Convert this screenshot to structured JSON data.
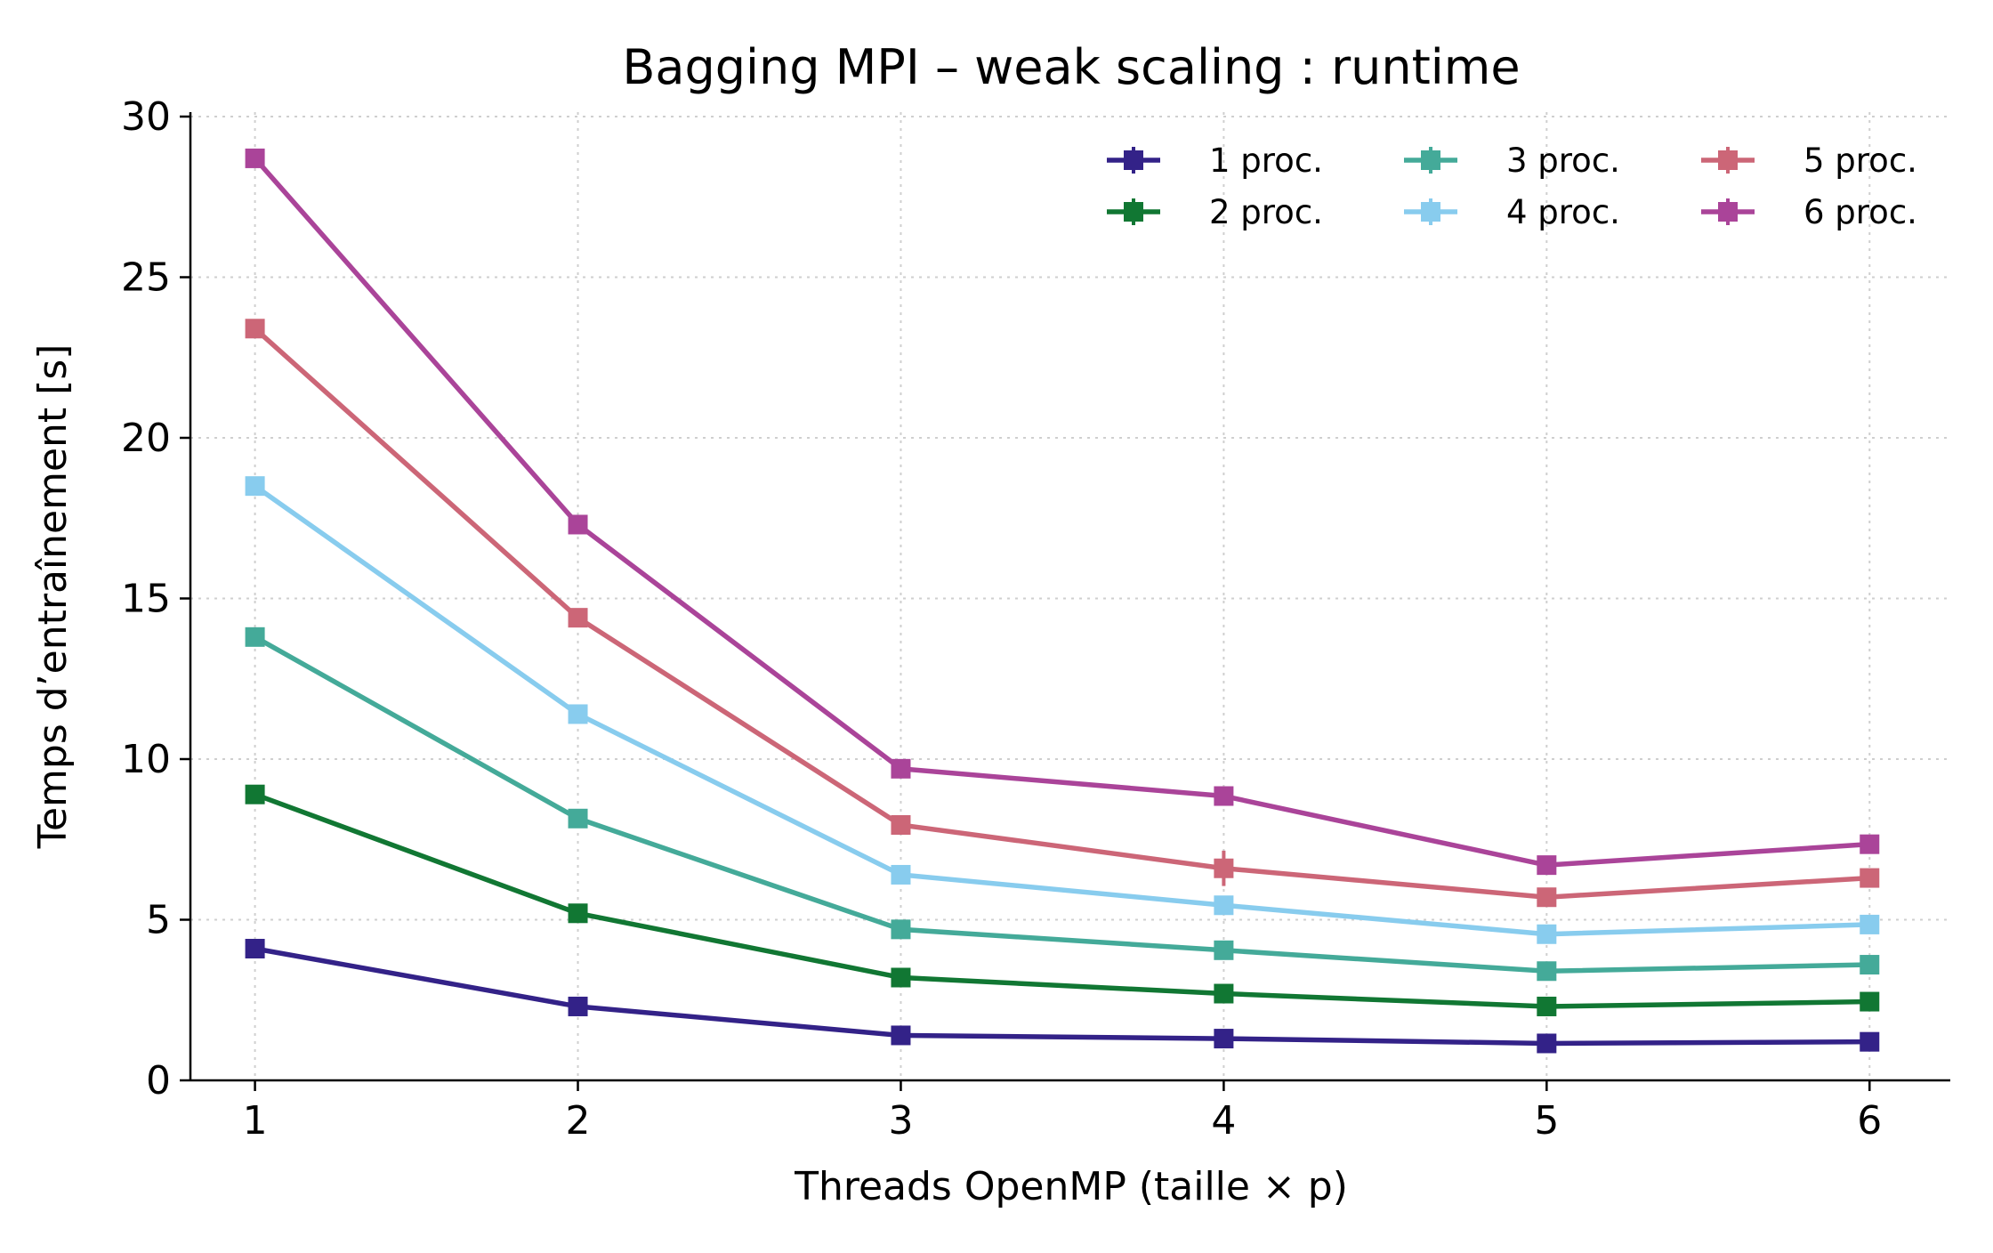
{
  "chart_data": {
    "type": "line",
    "title": "Bagging MPI – weak scaling : runtime",
    "xlabel": "Threads OpenMP  (taille × p)",
    "ylabel": "Temps d’entraînement [s]",
    "x": [
      1,
      2,
      3,
      4,
      5,
      6
    ],
    "x_tick_labels": [
      "1",
      "2",
      "3",
      "4",
      "5",
      "6"
    ],
    "y_ticks": [
      0,
      5,
      10,
      15,
      20,
      25,
      30
    ],
    "y_tick_labels": [
      "0",
      "5",
      "10",
      "15",
      "20",
      "25",
      "30"
    ],
    "xlim": [
      0.8,
      6.25
    ],
    "ylim": [
      0,
      30
    ],
    "grid": true,
    "legend": {
      "placement": "top-right",
      "columns": 3
    },
    "series": [
      {
        "name": "1 proc.",
        "color": "#332288",
        "values": [
          4.1,
          2.3,
          1.4,
          1.3,
          1.15,
          1.2
        ],
        "errors": [
          0.05,
          0.05,
          0.05,
          0.05,
          0.05,
          0.05
        ]
      },
      {
        "name": "2 proc.",
        "color": "#117733",
        "values": [
          8.9,
          5.2,
          3.2,
          2.7,
          2.3,
          2.45
        ],
        "errors": [
          0.1,
          0.1,
          0.1,
          0.1,
          0.1,
          0.1
        ]
      },
      {
        "name": "3 proc.",
        "color": "#44AA99",
        "values": [
          13.8,
          8.15,
          4.7,
          4.05,
          3.4,
          3.6
        ],
        "errors": [
          0.1,
          0.1,
          0.1,
          0.1,
          0.1,
          0.1
        ]
      },
      {
        "name": "4 proc.",
        "color": "#88CCEE",
        "values": [
          18.5,
          11.4,
          6.4,
          5.45,
          4.55,
          4.85
        ],
        "errors": [
          0.15,
          0.15,
          0.15,
          0.15,
          0.15,
          0.15
        ]
      },
      {
        "name": "5 proc.",
        "color": "#CC6677",
        "values": [
          23.4,
          14.4,
          7.95,
          6.6,
          5.7,
          6.3
        ],
        "errors": [
          0.15,
          0.15,
          0.15,
          0.55,
          0.15,
          0.15
        ]
      },
      {
        "name": "6 proc.",
        "color": "#AA4499",
        "values": [
          28.7,
          17.3,
          9.7,
          8.85,
          6.7,
          7.35
        ],
        "errors": [
          0.15,
          0.15,
          0.15,
          0.15,
          0.15,
          0.15
        ]
      }
    ]
  }
}
